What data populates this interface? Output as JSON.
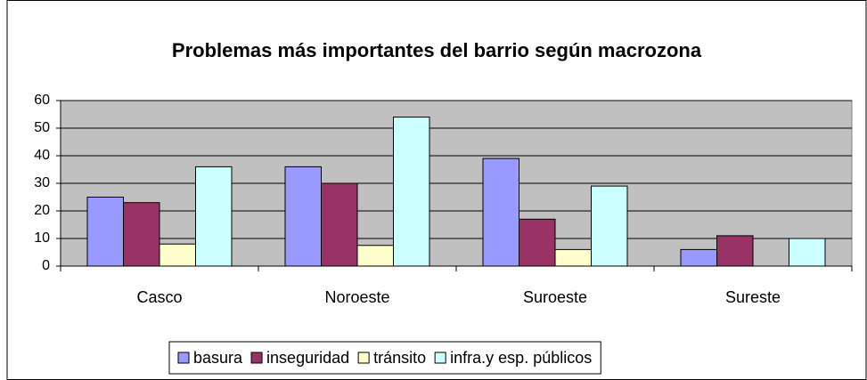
{
  "chart_data": {
    "type": "bar",
    "title": "Problemas más importantes del barrio según macrozona",
    "categories": [
      "Casco",
      "Noroeste",
      "Suroeste",
      "Sureste"
    ],
    "series": [
      {
        "name": "basura",
        "color": "#9999ff",
        "values": [
          25,
          36,
          39,
          6
        ]
      },
      {
        "name": "inseguridad",
        "color": "#993366",
        "values": [
          23,
          30,
          17,
          11
        ]
      },
      {
        "name": "tránsito",
        "color": "#ffffcc",
        "values": [
          8,
          7.5,
          6,
          0
        ]
      },
      {
        "name": "infra.y esp. públicos",
        "color": "#ccffff",
        "values": [
          36,
          54,
          29,
          10
        ]
      }
    ],
    "ylim": [
      0,
      60
    ],
    "yticks": [
      0,
      10,
      20,
      30,
      40,
      50,
      60
    ],
    "grid": true,
    "legend": "bottom"
  }
}
